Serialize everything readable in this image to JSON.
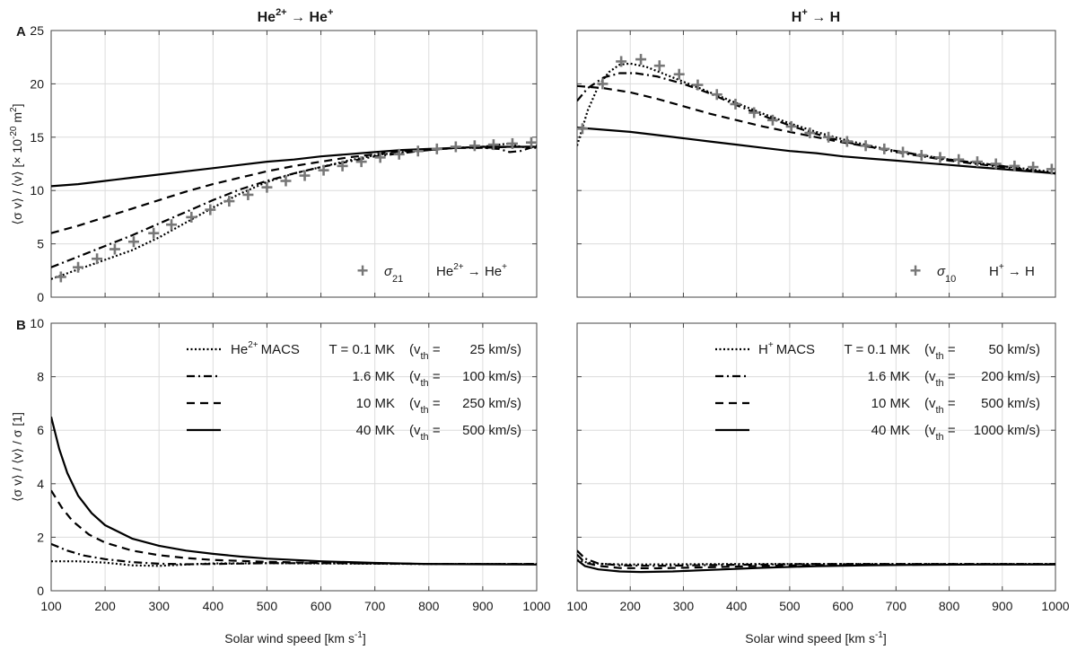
{
  "figure": {
    "xlabel": "Solar wind speed [km s",
    "xlabel_sup": "-1",
    "xlabel_end": "]",
    "panel_labels": [
      "A",
      "B"
    ],
    "ylabel_top": "⟨σ v⟩ / ⟨v⟩ [× 10",
    "ylabel_top_sup": "-20",
    "ylabel_top_mid": " m",
    "ylabel_top_sup2": "2",
    "ylabel_top_end": "]",
    "ylabel_bottom": "⟨σ v⟩ / ⟨v⟩ / σ [1]"
  },
  "titles": {
    "left": {
      "base": "He",
      "sup": "2+",
      "arrow": " → ",
      "base2": "He",
      "sup2": "+"
    },
    "right": {
      "base": "H",
      "sup": "+",
      "arrow": " → ",
      "base2": "H",
      "sup2": ""
    }
  },
  "colors": {
    "curve": "#000000",
    "marker": "#777777",
    "grid": "#dcdcdc",
    "axis": "#444444"
  },
  "legends": {
    "top_left": {
      "symbol": "+",
      "sigma": "σ",
      "sub": "21",
      "lbl_base": "He",
      "lbl_sup": "2+",
      "lbl_arrow": " → ",
      "lbl_base2": "He",
      "lbl_sup2": "+"
    },
    "top_right": {
      "symbol": "+",
      "sigma": "σ",
      "sub": "10",
      "lbl_base": "H",
      "lbl_sup": "+",
      "lbl_arrow": " → ",
      "lbl_base2": "H",
      "lbl_sup2": ""
    },
    "bottom_left": {
      "ion_base": "He",
      "ion_sup": "2+",
      "macs": "MACS",
      "rows": [
        {
          "style": "dotted",
          "temp": "T = 0.1 MK",
          "vth": "25 km/s"
        },
        {
          "style": "dashdot",
          "temp": "1.6 MK",
          "vth": "100 km/s"
        },
        {
          "style": "dashed",
          "temp": "10 MK",
          "vth": "250 km/s"
        },
        {
          "style": "solid",
          "temp": "40 MK",
          "vth": "500 km/s"
        }
      ]
    },
    "bottom_right": {
      "ion_base": "H",
      "ion_sup": "+",
      "macs": "MACS",
      "rows": [
        {
          "style": "dotted",
          "temp": "T = 0.1 MK",
          "vth": "50 km/s"
        },
        {
          "style": "dashdot",
          "temp": "1.6 MK",
          "vth": "200 km/s"
        },
        {
          "style": "dashed",
          "temp": "10 MK",
          "vth": "500 km/s"
        },
        {
          "style": "solid",
          "temp": "40 MK",
          "vth": "1000 km/s"
        }
      ]
    }
  },
  "chart_data": [
    {
      "id": "A-left",
      "type": "line",
      "xlim": [
        100,
        1000
      ],
      "ylim": [
        0,
        25
      ],
      "xticks": [
        100,
        200,
        300,
        400,
        500,
        600,
        700,
        800,
        900,
        1000
      ],
      "yticks": [
        0,
        5,
        10,
        15,
        20,
        25
      ],
      "markers": {
        "name": "σ21",
        "x": [
          118,
          150,
          185,
          218,
          253,
          290,
          323,
          360,
          395,
          430,
          465,
          500,
          535,
          570,
          605,
          640,
          675,
          710,
          745,
          780,
          815,
          850,
          885,
          920,
          955,
          990
        ],
        "y": [
          1.9,
          2.8,
          3.6,
          4.5,
          5.2,
          6.0,
          6.8,
          7.5,
          8.2,
          9.0,
          9.6,
          10.3,
          10.9,
          11.4,
          11.9,
          12.3,
          12.7,
          13.1,
          13.4,
          13.7,
          13.9,
          14.1,
          14.2,
          14.3,
          14.4,
          14.5
        ]
      },
      "series": [
        {
          "name": "T = 0.1 MK",
          "style": "dotted",
          "x": [
            100,
            150,
            200,
            250,
            300,
            350,
            400,
            450,
            500,
            550,
            600,
            650,
            700,
            750,
            800,
            850,
            900,
            930,
            950,
            970,
            1000
          ],
          "y": [
            1.7,
            2.6,
            3.5,
            4.4,
            5.6,
            7.0,
            8.4,
            9.7,
            10.8,
            11.6,
            12.2,
            12.8,
            13.3,
            13.6,
            13.8,
            14.0,
            14.1,
            14.3,
            14.4,
            14.1,
            14.0
          ]
        },
        {
          "name": "1.6 MK",
          "style": "dashdot",
          "x": [
            100,
            150,
            200,
            250,
            300,
            350,
            400,
            450,
            500,
            550,
            600,
            650,
            700,
            750,
            800,
            850,
            900,
            930,
            950,
            970,
            1000
          ],
          "y": [
            2.8,
            3.8,
            4.8,
            5.8,
            6.9,
            8.0,
            9.1,
            10.1,
            10.9,
            11.6,
            12.2,
            12.7,
            13.2,
            13.5,
            13.8,
            14.0,
            14.0,
            13.9,
            13.6,
            13.7,
            14.2
          ]
        },
        {
          "name": "10 MK",
          "style": "dashed",
          "x": [
            100,
            150,
            200,
            250,
            300,
            350,
            400,
            450,
            500,
            550,
            600,
            650,
            700,
            750,
            800,
            850,
            900,
            950,
            1000
          ],
          "y": [
            6.0,
            6.7,
            7.5,
            8.3,
            9.1,
            9.9,
            10.6,
            11.2,
            11.8,
            12.3,
            12.7,
            13.1,
            13.4,
            13.7,
            13.8,
            14.0,
            14.0,
            14.1,
            14.1
          ]
        },
        {
          "name": "40 MK",
          "style": "solid",
          "x": [
            100,
            150,
            200,
            250,
            300,
            350,
            400,
            450,
            500,
            550,
            600,
            650,
            700,
            750,
            800,
            850,
            900,
            950,
            1000
          ],
          "y": [
            10.4,
            10.6,
            10.9,
            11.2,
            11.5,
            11.8,
            12.1,
            12.4,
            12.7,
            12.9,
            13.2,
            13.4,
            13.6,
            13.8,
            13.9,
            14.0,
            14.1,
            14.1,
            14.1
          ]
        }
      ]
    },
    {
      "id": "A-right",
      "type": "line",
      "xlim": [
        100,
        1000
      ],
      "ylim": [
        0,
        25
      ],
      "xticks": [
        100,
        200,
        300,
        400,
        500,
        600,
        700,
        800,
        900,
        1000
      ],
      "yticks": [
        0,
        5,
        10,
        15,
        20,
        25
      ],
      "markers": {
        "name": "σ10",
        "x": [
          110,
          148,
          183,
          220,
          255,
          292,
          327,
          363,
          398,
          433,
          468,
          503,
          538,
          573,
          608,
          643,
          678,
          713,
          748,
          783,
          818,
          853,
          888,
          923,
          958,
          993
        ],
        "y": [
          15.8,
          20.0,
          22.1,
          22.3,
          21.7,
          20.9,
          19.9,
          19.0,
          18.1,
          17.3,
          16.6,
          16.0,
          15.4,
          15.0,
          14.6,
          14.2,
          13.9,
          13.6,
          13.3,
          13.1,
          12.9,
          12.7,
          12.5,
          12.3,
          12.2,
          12.0
        ]
      },
      "series": [
        {
          "name": "T = 0.1 MK",
          "style": "dotted",
          "x": [
            100,
            120,
            140,
            160,
            180,
            200,
            230,
            260,
            300,
            350,
            400,
            450,
            500,
            550,
            600,
            650,
            700,
            750,
            800,
            850,
            900,
            950,
            1000
          ],
          "y": [
            14.2,
            17.5,
            19.8,
            21.1,
            21.8,
            21.9,
            21.6,
            21.0,
            20.2,
            19.2,
            18.2,
            17.2,
            16.3,
            15.5,
            14.8,
            14.2,
            13.7,
            13.3,
            12.9,
            12.6,
            12.3,
            12.0,
            11.7
          ]
        },
        {
          "name": "1.6 MK",
          "style": "dashdot",
          "x": [
            100,
            120,
            150,
            180,
            210,
            250,
            300,
            350,
            400,
            450,
            500,
            550,
            600,
            650,
            700,
            750,
            800,
            850,
            900,
            950,
            1000
          ],
          "y": [
            18.4,
            19.6,
            20.6,
            21.0,
            21.0,
            20.7,
            20.0,
            19.1,
            18.0,
            17.0,
            16.1,
            15.3,
            14.6,
            14.1,
            13.6,
            13.2,
            12.8,
            12.5,
            12.2,
            11.9,
            11.6
          ]
        },
        {
          "name": "10 MK",
          "style": "dashed",
          "x": [
            100,
            150,
            200,
            250,
            300,
            350,
            400,
            450,
            500,
            550,
            600,
            650,
            700,
            750,
            800,
            850,
            900,
            950,
            1000
          ],
          "y": [
            19.8,
            19.6,
            19.2,
            18.6,
            17.9,
            17.2,
            16.6,
            16.0,
            15.5,
            15.0,
            14.5,
            14.1,
            13.7,
            13.3,
            12.9,
            12.6,
            12.3,
            11.9,
            11.6
          ]
        },
        {
          "name": "40 MK",
          "style": "solid",
          "x": [
            100,
            150,
            200,
            250,
            300,
            350,
            400,
            450,
            500,
            550,
            600,
            650,
            700,
            750,
            800,
            850,
            900,
            950,
            1000
          ],
          "y": [
            15.9,
            15.7,
            15.5,
            15.2,
            14.9,
            14.6,
            14.3,
            14.0,
            13.7,
            13.5,
            13.2,
            13.0,
            12.8,
            12.6,
            12.4,
            12.2,
            12.0,
            11.8,
            11.6
          ]
        }
      ]
    },
    {
      "id": "B-left",
      "type": "line",
      "xlim": [
        100,
        1000
      ],
      "ylim": [
        0,
        10
      ],
      "xticks": [
        100,
        200,
        300,
        400,
        500,
        600,
        700,
        800,
        900,
        1000
      ],
      "yticks": [
        0,
        2,
        4,
        6,
        8,
        10
      ],
      "series": [
        {
          "name": "T = 0.1 MK",
          "style": "dotted",
          "x": [
            100,
            150,
            200,
            250,
            300,
            350,
            400,
            500,
            600,
            700,
            800,
            900,
            1000
          ],
          "y": [
            1.1,
            1.1,
            1.05,
            0.95,
            0.93,
            0.98,
            1.02,
            1.03,
            1.02,
            1.01,
            1.0,
            1.0,
            1.0
          ]
        },
        {
          "name": "1.6 MK",
          "style": "dashdot",
          "x": [
            100,
            130,
            160,
            200,
            250,
            300,
            350,
            400,
            500,
            600,
            700,
            800,
            900,
            1000
          ],
          "y": [
            1.75,
            1.5,
            1.32,
            1.18,
            1.07,
            1.01,
            0.99,
            1.0,
            1.03,
            1.03,
            1.02,
            1.0,
            1.0,
            1.0
          ]
        },
        {
          "name": "10 MK",
          "style": "dashed",
          "x": [
            100,
            120,
            140,
            170,
            200,
            250,
            300,
            350,
            400,
            500,
            600,
            700,
            800,
            900,
            1000
          ],
          "y": [
            3.75,
            3.1,
            2.6,
            2.1,
            1.8,
            1.5,
            1.33,
            1.22,
            1.15,
            1.08,
            1.04,
            1.02,
            1.0,
            1.0,
            1.0
          ]
        },
        {
          "name": "40 MK",
          "style": "solid",
          "x": [
            100,
            115,
            130,
            150,
            175,
            200,
            250,
            300,
            350,
            400,
            450,
            500,
            600,
            700,
            800,
            900,
            1000
          ],
          "y": [
            6.5,
            5.3,
            4.4,
            3.55,
            2.9,
            2.45,
            1.95,
            1.68,
            1.5,
            1.38,
            1.28,
            1.2,
            1.1,
            1.04,
            1.0,
            0.99,
            0.98
          ]
        }
      ]
    },
    {
      "id": "B-right",
      "type": "line",
      "xlim": [
        100,
        1000
      ],
      "ylim": [
        0,
        10
      ],
      "xticks": [
        100,
        200,
        300,
        400,
        500,
        600,
        700,
        800,
        900,
        1000
      ],
      "yticks": [
        0,
        2,
        4,
        6,
        8,
        10
      ],
      "series": [
        {
          "name": "T = 0.1 MK",
          "style": "dotted",
          "x": [
            100,
            120,
            150,
            200,
            300,
            400,
            500,
            600,
            700,
            800,
            900,
            1000
          ],
          "y": [
            1.15,
            1.05,
            1.0,
            0.98,
            0.99,
            1.0,
            1.0,
            1.0,
            1.0,
            1.0,
            1.0,
            1.0
          ]
        },
        {
          "name": "1.6 MK",
          "style": "dashdot",
          "x": [
            100,
            115,
            140,
            180,
            250,
            350,
            450,
            550,
            700,
            850,
            1000
          ],
          "y": [
            1.5,
            1.2,
            1.02,
            0.95,
            0.93,
            0.96,
            0.98,
            1.0,
            1.0,
            1.0,
            1.0
          ]
        },
        {
          "name": "10 MK",
          "style": "dashed",
          "x": [
            100,
            115,
            140,
            180,
            250,
            350,
            450,
            550,
            700,
            850,
            1000
          ],
          "y": [
            1.35,
            1.05,
            0.93,
            0.85,
            0.84,
            0.88,
            0.93,
            0.96,
            0.98,
            0.99,
            0.99
          ]
        },
        {
          "name": "40 MK",
          "style": "solid",
          "x": [
            100,
            115,
            140,
            180,
            220,
            280,
            350,
            450,
            550,
            650,
            750,
            850,
            950,
            1000
          ],
          "y": [
            1.15,
            0.92,
            0.8,
            0.72,
            0.7,
            0.72,
            0.78,
            0.86,
            0.92,
            0.95,
            0.97,
            0.98,
            0.98,
            0.98
          ]
        }
      ]
    }
  ]
}
